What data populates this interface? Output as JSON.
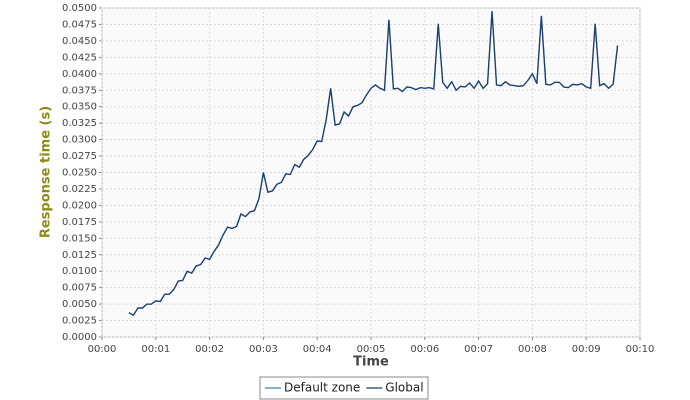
{
  "chart_data": {
    "type": "line",
    "x_label": "Time",
    "y_label": "Response time (s)",
    "x": [
      30,
      35,
      40,
      45,
      50,
      55,
      60,
      65,
      70,
      75,
      80,
      85,
      90,
      95,
      100,
      105,
      110,
      115,
      120,
      125,
      130,
      135,
      140,
      145,
      150,
      155,
      160,
      165,
      170,
      175,
      180,
      185,
      190,
      195,
      200,
      205,
      210,
      215,
      220,
      225,
      230,
      235,
      240,
      245,
      250,
      255,
      260,
      265,
      270,
      275,
      280,
      285,
      290,
      295,
      300,
      305,
      310,
      315,
      320,
      325,
      330,
      335,
      340,
      345,
      350,
      355,
      360,
      365,
      370,
      375,
      380,
      385,
      390,
      395,
      400,
      405,
      410,
      415,
      420,
      425,
      430,
      435,
      440,
      445,
      450,
      455,
      460,
      465,
      470,
      475,
      480,
      485,
      490,
      495,
      500,
      505,
      510,
      515,
      520,
      525,
      530,
      535,
      540,
      545,
      550,
      555,
      560,
      565,
      570,
      575
    ],
    "series": [
      {
        "name": "Default zone",
        "color": "#4a86be",
        "values": [
          0.0037,
          0.0033,
          0.0044,
          0.0044,
          0.005,
          0.005,
          0.0055,
          0.0054,
          0.0065,
          0.0065,
          0.0072,
          0.0085,
          0.0086,
          0.01,
          0.0097,
          0.0108,
          0.011,
          0.012,
          0.0118,
          0.013,
          0.014,
          0.0155,
          0.0167,
          0.0165,
          0.0168,
          0.0187,
          0.0183,
          0.019,
          0.0192,
          0.021,
          0.025,
          0.022,
          0.0222,
          0.0232,
          0.0235,
          0.0248,
          0.0247,
          0.0262,
          0.0258,
          0.027,
          0.0276,
          0.0285,
          0.0298,
          0.0297,
          0.033,
          0.0378,
          0.0322,
          0.0324,
          0.0342,
          0.0336,
          0.035,
          0.0352,
          0.0356,
          0.0368,
          0.0378,
          0.0383,
          0.0378,
          0.0375,
          0.0482,
          0.0377,
          0.0378,
          0.0373,
          0.038,
          0.0379,
          0.0376,
          0.0379,
          0.0378,
          0.0379,
          0.0377,
          0.0476,
          0.0387,
          0.0378,
          0.0388,
          0.0375,
          0.0381,
          0.038,
          0.0386,
          0.0378,
          0.0389,
          0.0378,
          0.0385,
          0.0495,
          0.0383,
          0.0382,
          0.0388,
          0.0383,
          0.0382,
          0.0381,
          0.0382,
          0.039,
          0.04,
          0.0385,
          0.0488,
          0.0384,
          0.0383,
          0.0387,
          0.0387,
          0.038,
          0.0379,
          0.0384,
          0.0383,
          0.0385,
          0.038,
          0.0378,
          0.0476,
          0.0382,
          0.0385,
          0.0378,
          0.0384,
          0.0443
        ]
      },
      {
        "name": "Global",
        "color": "#1d3f72",
        "values": [
          0.0037,
          0.0033,
          0.0044,
          0.0044,
          0.005,
          0.005,
          0.0055,
          0.0054,
          0.0065,
          0.0065,
          0.0072,
          0.0085,
          0.0086,
          0.01,
          0.0097,
          0.0108,
          0.011,
          0.012,
          0.0118,
          0.013,
          0.014,
          0.0155,
          0.0167,
          0.0165,
          0.0168,
          0.0187,
          0.0183,
          0.019,
          0.0192,
          0.021,
          0.025,
          0.022,
          0.0222,
          0.0232,
          0.0235,
          0.0248,
          0.0247,
          0.0262,
          0.0258,
          0.027,
          0.0276,
          0.0285,
          0.0298,
          0.0297,
          0.033,
          0.0378,
          0.0322,
          0.0324,
          0.0342,
          0.0336,
          0.035,
          0.0352,
          0.0356,
          0.0368,
          0.0378,
          0.0383,
          0.0378,
          0.0375,
          0.0482,
          0.0377,
          0.0378,
          0.0373,
          0.038,
          0.0379,
          0.0376,
          0.0379,
          0.0378,
          0.0379,
          0.0377,
          0.0476,
          0.0387,
          0.0378,
          0.0388,
          0.0375,
          0.0381,
          0.038,
          0.0386,
          0.0378,
          0.0389,
          0.0378,
          0.0385,
          0.0495,
          0.0383,
          0.0382,
          0.0388,
          0.0383,
          0.0382,
          0.0381,
          0.0382,
          0.039,
          0.04,
          0.0385,
          0.0488,
          0.0384,
          0.0383,
          0.0387,
          0.0387,
          0.038,
          0.0379,
          0.0384,
          0.0383,
          0.0385,
          0.038,
          0.0378,
          0.0476,
          0.0382,
          0.0385,
          0.0378,
          0.0384,
          0.0443
        ]
      }
    ],
    "xlim": [
      0,
      600
    ],
    "xticks": [
      {
        "value": 0,
        "label": "00:00"
      },
      {
        "value": 60,
        "label": "00:01"
      },
      {
        "value": 120,
        "label": "00:02"
      },
      {
        "value": 180,
        "label": "00:03"
      },
      {
        "value": 240,
        "label": "00:04"
      },
      {
        "value": 300,
        "label": "00:05"
      },
      {
        "value": 360,
        "label": "00:06"
      },
      {
        "value": 420,
        "label": "00:07"
      },
      {
        "value": 480,
        "label": "00:08"
      },
      {
        "value": 540,
        "label": "00:09"
      },
      {
        "value": 600,
        "label": "00:10"
      }
    ],
    "ylim": [
      0,
      0.05
    ],
    "yticks": [
      {
        "value": 0,
        "label": "0.0000"
      },
      {
        "value": 0.0025,
        "label": "0.0025"
      },
      {
        "value": 0.005,
        "label": "0.0050"
      },
      {
        "value": 0.0075,
        "label": "0.0075"
      },
      {
        "value": 0.01,
        "label": "0.0100"
      },
      {
        "value": 0.0125,
        "label": "0.0125"
      },
      {
        "value": 0.015,
        "label": "0.0150"
      },
      {
        "value": 0.0175,
        "label": "0.0175"
      },
      {
        "value": 0.02,
        "label": "0.0200"
      },
      {
        "value": 0.0225,
        "label": "0.0225"
      },
      {
        "value": 0.025,
        "label": "0.0250"
      },
      {
        "value": 0.0275,
        "label": "0.0275"
      },
      {
        "value": 0.03,
        "label": "0.0300"
      },
      {
        "value": 0.0325,
        "label": "0.0325"
      },
      {
        "value": 0.035,
        "label": "0.0350"
      },
      {
        "value": 0.0375,
        "label": "0.0375"
      },
      {
        "value": 0.04,
        "label": "0.0400"
      },
      {
        "value": 0.0425,
        "label": "0.0425"
      },
      {
        "value": 0.045,
        "label": "0.0450"
      },
      {
        "value": 0.0475,
        "label": "0.0475"
      },
      {
        "value": 0.05,
        "label": "0.0500"
      }
    ],
    "grid": true,
    "y_label_color": "#8c8c14"
  }
}
